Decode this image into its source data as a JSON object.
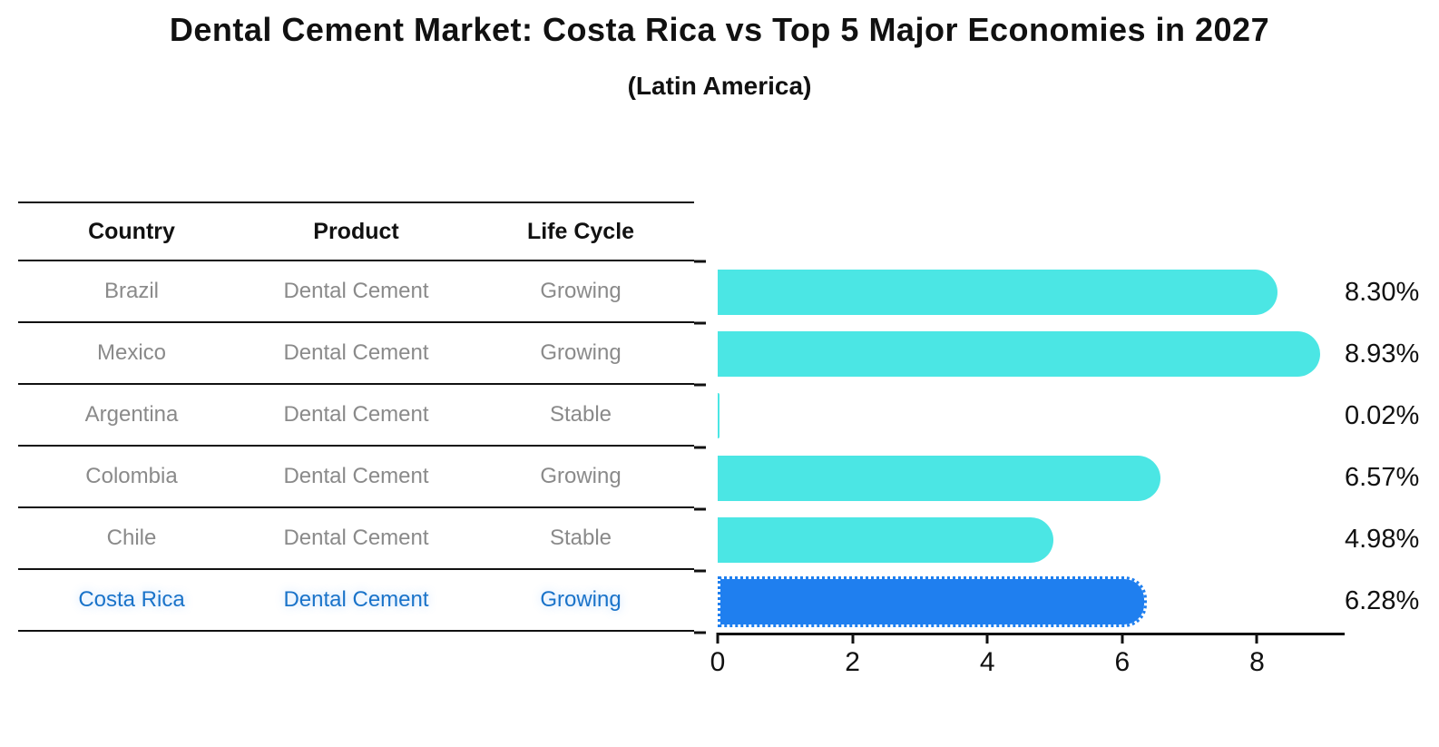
{
  "title": "Dental Cement Market: Costa Rica vs Top 5 Major Economies in 2027",
  "subtitle": "(Latin America)",
  "table": {
    "headers": [
      "Country",
      "Product",
      "Life Cycle"
    ],
    "rows": [
      {
        "country": "Brazil",
        "product": "Dental Cement",
        "life_cycle": "Growing",
        "highlighted": false
      },
      {
        "country": "Mexico",
        "product": "Dental Cement",
        "life_cycle": "Growing",
        "highlighted": false
      },
      {
        "country": "Argentina",
        "product": "Dental Cement",
        "life_cycle": "Stable",
        "highlighted": false
      },
      {
        "country": "Colombia",
        "product": "Dental Cement",
        "life_cycle": "Growing",
        "highlighted": false
      },
      {
        "country": "Chile",
        "product": "Dental Cement",
        "life_cycle": "Stable",
        "highlighted": false
      },
      {
        "country": "Costa Rica",
        "product": "Dental Cement",
        "life_cycle": "Growing",
        "highlighted": true
      }
    ]
  },
  "chart_data": {
    "type": "bar",
    "orientation": "horizontal",
    "title": "Dental Cement Market: Costa Rica vs Top 5 Major Economies in 2027 (Latin America)",
    "categories": [
      "Brazil",
      "Mexico",
      "Argentina",
      "Colombia",
      "Chile",
      "Costa Rica"
    ],
    "values": [
      8.3,
      8.93,
      0.02,
      6.57,
      4.98,
      6.28
    ],
    "value_labels": [
      "8.30%",
      "8.93%",
      "0.02%",
      "6.57%",
      "4.98%",
      "6.28%"
    ],
    "x_ticks": [
      0,
      2,
      4,
      6,
      8
    ],
    "x_tick_labels": [
      "0",
      "2",
      "4",
      "6",
      "8"
    ],
    "xlim": [
      0,
      9.3
    ],
    "grid": false,
    "legend": false,
    "bar_color": "#4BE6E4",
    "highlight_bar_color": "#1F7FEF",
    "highlight_index": 5,
    "highlight_bar_style": "dotted-edge"
  },
  "colors": {
    "background": "#FFFFFF",
    "bar_cyan": "#4BE6E4",
    "bar_blue": "#1F7FEF",
    "highlight_text": "#1A73C9",
    "table_text": "#8A8A8A",
    "heading_text": "#111111",
    "line": "#111111"
  }
}
